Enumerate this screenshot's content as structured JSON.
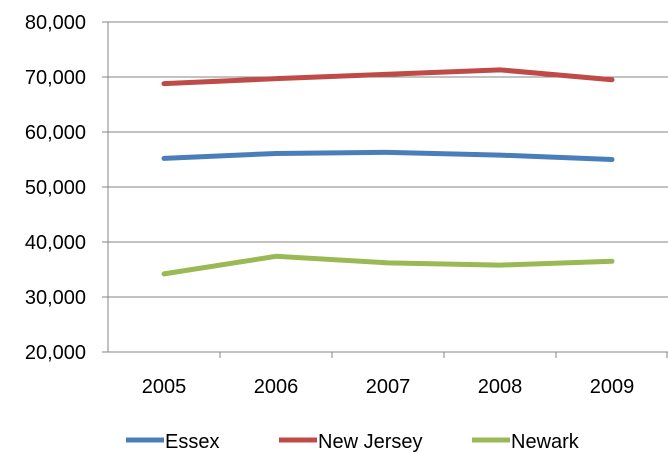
{
  "chart_data": {
    "type": "line",
    "title": "",
    "xlabel": "",
    "ylabel": "",
    "categories": [
      "2005",
      "2006",
      "2007",
      "2008",
      "2009"
    ],
    "ylim": [
      20000,
      80000
    ],
    "yticks": [
      20000,
      30000,
      40000,
      50000,
      60000,
      70000,
      80000
    ],
    "ytick_labels": [
      "20,000",
      "30,000",
      "40,000",
      "50,000",
      "60,000",
      "70,000",
      "80,000"
    ],
    "grid": true,
    "legend_position": "bottom",
    "series": [
      {
        "name": "Essex",
        "color": "#4a7ebb",
        "values": [
          55200,
          56100,
          56300,
          55800,
          55000
        ]
      },
      {
        "name": "New Jersey",
        "color": "#be4b48",
        "values": [
          68800,
          69700,
          70500,
          71300,
          69500
        ]
      },
      {
        "name": "Newark",
        "color": "#98b954",
        "values": [
          34200,
          37400,
          36200,
          35800,
          36500
        ]
      }
    ]
  }
}
